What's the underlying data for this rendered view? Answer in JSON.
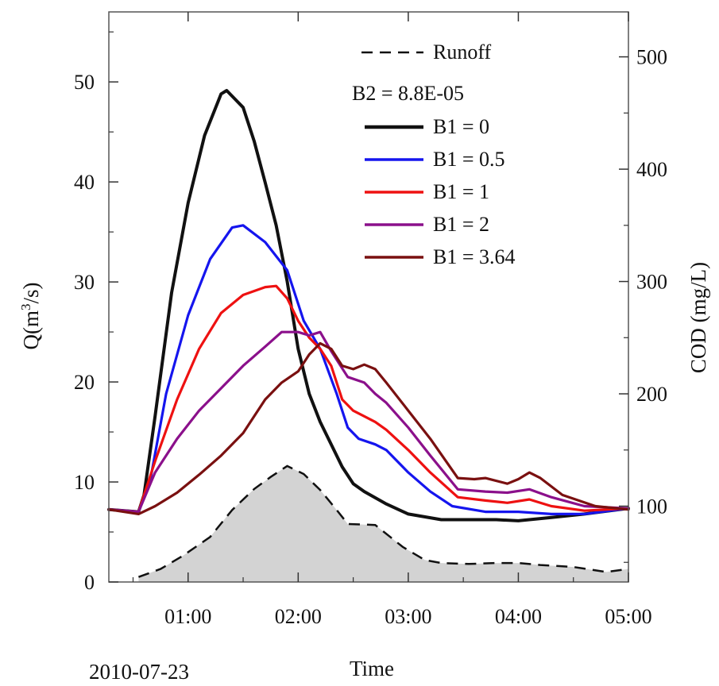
{
  "chart_data": {
    "type": "line",
    "xlabel": "Time",
    "x_date_label": "2010-07-23",
    "ylabel_left": "Q(m³/s)",
    "ylabel_left_parts": {
      "prefix": "Q(m",
      "sup": "3",
      "suffix": "/s)"
    },
    "ylabel_right": "COD (mg/L)",
    "xlim": [
      0.28,
      5.0
    ],
    "ylim_left": [
      0,
      57
    ],
    "ylim_right": [
      32.5,
      540
    ],
    "x_ticks": [
      1,
      2,
      3,
      4,
      5
    ],
    "x_tick_labels": [
      "01:00",
      "02:00",
      "03:00",
      "04:00",
      "05:00"
    ],
    "y_left_ticks": [
      0,
      10,
      20,
      30,
      40,
      50
    ],
    "y_left_tick_labels": [
      "0",
      "10",
      "20",
      "30",
      "40",
      "50"
    ],
    "y_right_ticks": [
      100,
      200,
      300,
      400,
      500
    ],
    "y_right_tick_labels": [
      "100",
      "200",
      "300",
      "400",
      "500"
    ],
    "grid": false,
    "legend_position": "top-right",
    "legend_subtitle": "B2 = 8.8E-05",
    "runoff": {
      "name": "Runoff",
      "axis": "left",
      "style": "dashed",
      "fill": "#d3d3d3",
      "color": "#111111",
      "x": [
        0.55,
        0.75,
        0.95,
        1.2,
        1.4,
        1.6,
        1.75,
        1.9,
        2.05,
        2.2,
        2.35,
        2.45,
        2.7,
        2.95,
        3.15,
        3.3,
        3.55,
        3.8,
        4.0,
        4.2,
        4.5,
        4.8,
        5.0
      ],
      "y": [
        0.5,
        1.3,
        2.6,
        4.5,
        7.2,
        9.3,
        10.5,
        11.6,
        10.8,
        9.2,
        7.2,
        5.8,
        5.7,
        3.5,
        2.2,
        1.9,
        1.8,
        1.9,
        1.9,
        1.7,
        1.5,
        1.0,
        1.3
      ]
    },
    "series": [
      {
        "name": "B1 = 0",
        "axis": "right",
        "color": "#111111",
        "x": [
          0.28,
          0.55,
          0.6,
          0.7,
          0.85,
          1.0,
          1.15,
          1.3,
          1.35,
          1.5,
          1.6,
          1.7,
          1.8,
          1.9,
          2.0,
          2.1,
          2.2,
          2.3,
          2.4,
          2.5,
          2.6,
          2.8,
          3.0,
          3.3,
          3.5,
          3.8,
          4.0,
          4.3,
          4.6,
          5.0
        ],
        "y": [
          97,
          95,
          110,
          180,
          290,
          370,
          430,
          467,
          470,
          455,
          425,
          388,
          350,
          300,
          240,
          200,
          175,
          155,
          135,
          120,
          113,
          102,
          93,
          88,
          88,
          88,
          87,
          90,
          93,
          98
        ]
      },
      {
        "name": "B1 = 0.5",
        "axis": "right",
        "color": "#1515ee",
        "x": [
          0.28,
          0.55,
          0.65,
          0.8,
          1.0,
          1.2,
          1.4,
          1.5,
          1.7,
          1.9,
          2.05,
          2.2,
          2.35,
          2.45,
          2.55,
          2.7,
          2.8,
          3.0,
          3.2,
          3.4,
          3.7,
          4.0,
          4.3,
          4.6,
          5.0
        ],
        "y": [
          97,
          95,
          120,
          200,
          270,
          320,
          348,
          350,
          335,
          310,
          265,
          240,
          200,
          170,
          160,
          155,
          150,
          130,
          113,
          100,
          95,
          95,
          93,
          93,
          98
        ]
      },
      {
        "name": "B1 = 1",
        "axis": "right",
        "color": "#ee1111",
        "x": [
          0.28,
          0.55,
          0.7,
          0.9,
          1.1,
          1.3,
          1.5,
          1.7,
          1.8,
          1.9,
          2.0,
          2.1,
          2.2,
          2.3,
          2.4,
          2.5,
          2.6,
          2.7,
          2.8,
          3.0,
          3.2,
          3.45,
          3.7,
          3.9,
          4.1,
          4.3,
          4.6,
          5.0
        ],
        "y": [
          97,
          95,
          140,
          195,
          240,
          272,
          288,
          295,
          296,
          285,
          265,
          250,
          240,
          225,
          195,
          185,
          180,
          175,
          168,
          150,
          130,
          108,
          105,
          103,
          106,
          100,
          96,
          98
        ]
      },
      {
        "name": "B1 = 2",
        "axis": "right",
        "color": "#8b108b",
        "x": [
          0.28,
          0.55,
          0.7,
          0.9,
          1.1,
          1.3,
          1.5,
          1.7,
          1.85,
          2.0,
          2.1,
          2.2,
          2.3,
          2.45,
          2.6,
          2.7,
          2.8,
          3.0,
          3.2,
          3.45,
          3.7,
          3.9,
          4.1,
          4.3,
          4.6,
          5.0
        ],
        "y": [
          97,
          95,
          130,
          160,
          185,
          205,
          225,
          242,
          255,
          255,
          252,
          255,
          238,
          215,
          210,
          200,
          192,
          170,
          145,
          115,
          113,
          112,
          115,
          108,
          100,
          98
        ]
      },
      {
        "name": "B1 = 3.64",
        "axis": "right",
        "color": "#7a1010",
        "x": [
          0.28,
          0.55,
          0.7,
          0.9,
          1.1,
          1.3,
          1.5,
          1.7,
          1.85,
          2.0,
          2.1,
          2.2,
          2.3,
          2.4,
          2.5,
          2.6,
          2.7,
          2.8,
          3.0,
          3.2,
          3.45,
          3.6,
          3.7,
          3.9,
          4.0,
          4.1,
          4.2,
          4.4,
          4.7,
          5.0
        ],
        "y": [
          97,
          93,
          100,
          112,
          128,
          145,
          165,
          195,
          210,
          220,
          235,
          245,
          240,
          225,
          222,
          226,
          222,
          210,
          185,
          160,
          125,
          124,
          125,
          120,
          124,
          130,
          125,
          110,
          100,
          97
        ]
      }
    ]
  }
}
